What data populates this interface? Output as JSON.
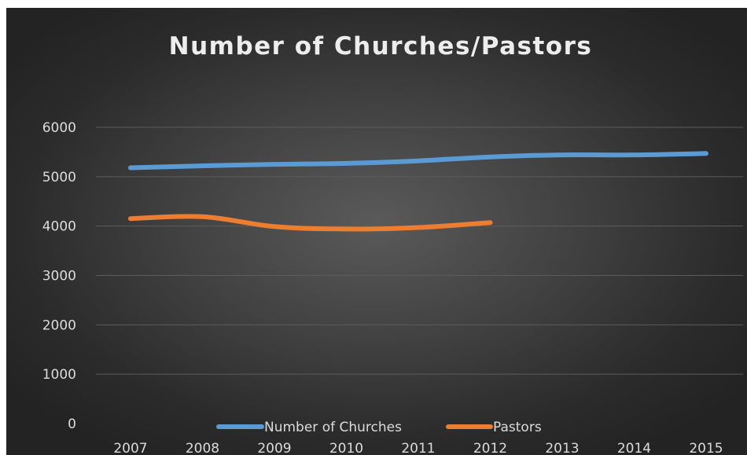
{
  "chart_data": {
    "type": "line",
    "title": "Number of Churches/Pastors",
    "xlabel": "",
    "ylabel": "",
    "categories": [
      "2007",
      "2008",
      "2009",
      "2010",
      "2011",
      "2012",
      "2013",
      "2014",
      "2015"
    ],
    "ylim": [
      0,
      6000
    ],
    "yticks": [
      0,
      1000,
      2000,
      3000,
      4000,
      5000,
      6000
    ],
    "grid": true,
    "legend_position": "bottom",
    "series": [
      {
        "name": "Number of Churches",
        "color": "#5b9bd5",
        "values": [
          5180,
          5220,
          5250,
          5270,
          5320,
          5400,
          5440,
          5440,
          5470
        ]
      },
      {
        "name": "Pastors",
        "color": "#ed7d31",
        "values": [
          4150,
          4190,
          3990,
          3940,
          3970,
          4070,
          null,
          null,
          null
        ]
      }
    ]
  }
}
